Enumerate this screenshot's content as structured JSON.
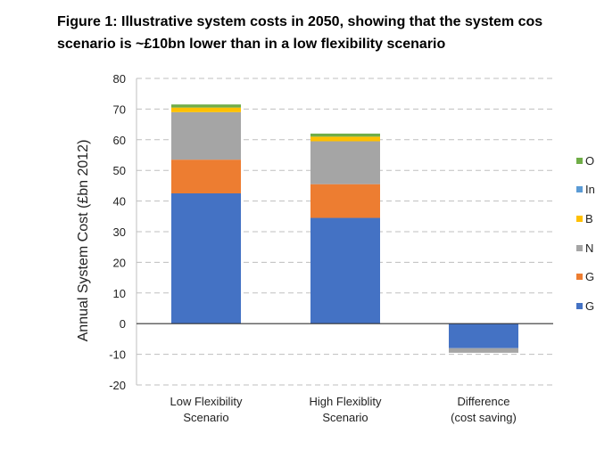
{
  "title": {
    "line1": "Figure 1: Illustrative system costs in 2050, showing that the system cos",
    "line2": "scenario is ~£10bn lower than in a low flexibility scenario"
  },
  "chart_data": {
    "type": "bar",
    "stacked": true,
    "title": "Figure 1: Illustrative system costs in 2050, showing that the system cos scenario is ~£10bn lower than in a low flexibility scenario",
    "ylabel": "Annual System Cost (£bn 2012)",
    "xlabel": "",
    "ylim": [
      -20,
      80
    ],
    "yticks": [
      -20,
      -10,
      0,
      10,
      20,
      30,
      40,
      50,
      60,
      70,
      80
    ],
    "grid": "dashed horizontal",
    "legend_position": "right (cut off)",
    "categories": [
      [
        "Low Flexibility",
        "Scenario"
      ],
      [
        "High Flexiblity",
        "Scenario"
      ],
      [
        "Difference",
        "(cost saving)"
      ]
    ],
    "series": [
      {
        "name": "G",
        "color": "#4472C4",
        "values": [
          42.5,
          34.5,
          -8.0
        ]
      },
      {
        "name": "G",
        "color": "#ED7D31",
        "values": [
          11.0,
          11.0,
          0
        ]
      },
      {
        "name": "N",
        "color": "#A5A5A5",
        "values": [
          15.5,
          14.0,
          -1.5
        ]
      },
      {
        "name": "B",
        "color": "#FFC000",
        "values": [
          1.5,
          1.5,
          0
        ]
      },
      {
        "name": "In",
        "color": "#5B9BD5",
        "values": [
          0,
          0,
          0
        ]
      },
      {
        "name": "O",
        "color": "#70AD47",
        "values": [
          1.0,
          1.0,
          0
        ]
      }
    ]
  }
}
